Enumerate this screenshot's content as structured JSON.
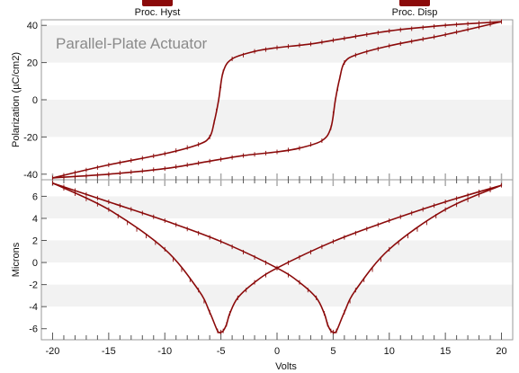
{
  "toolbar": {
    "buttons": [
      {
        "label": "Proc. Hyst"
      },
      {
        "label": "Proc. Disp"
      }
    ]
  },
  "colors": {
    "series": "#8b0a0a",
    "band": "#f2f2f2"
  },
  "chart_data": [
    {
      "type": "line",
      "title": "Parallel-Plate Actuator",
      "ylabel": "Polarization (µC/cm2)",
      "xlim": [
        -21,
        21
      ],
      "ylim": [
        -43,
        43
      ],
      "yticks": [
        -40,
        -20,
        0,
        20,
        40
      ],
      "yticklabels": [
        "-40",
        "-20",
        "0",
        "20",
        "40"
      ],
      "grid": false,
      "series": [
        {
          "branch": "descending",
          "x": [
            20,
            15,
            10,
            6,
            3,
            0,
            -2,
            -4,
            -4.8,
            -5.2,
            -5.6,
            -6,
            -7,
            -10,
            -15,
            -20
          ],
          "y": [
            42,
            40,
            37,
            33,
            30,
            28,
            26,
            22,
            15,
            0,
            -12,
            -20,
            -24,
            -29,
            -35,
            -42
          ]
        },
        {
          "branch": "ascending",
          "x": [
            -20,
            -15,
            -10,
            -6,
            -3,
            0,
            2,
            4,
            4.8,
            5.2,
            5.6,
            6,
            7,
            10,
            15,
            20
          ],
          "y": [
            -42,
            -40,
            -37,
            -33,
            -30,
            -28,
            -26,
            -22,
            -15,
            0,
            12,
            20,
            24,
            29,
            35,
            42
          ]
        }
      ]
    },
    {
      "type": "line",
      "ylabel": "Microns",
      "xlabel": "Volts",
      "xlim": [
        -21,
        21
      ],
      "ylim": [
        -7,
        7.5
      ],
      "xticks": [
        -20,
        -15,
        -10,
        -5,
        0,
        5,
        10,
        15,
        20
      ],
      "xticklabels": [
        "-20",
        "-15",
        "-10",
        "-5",
        "0",
        "5",
        "10",
        "15",
        "20"
      ],
      "yticks": [
        -6,
        -4,
        -2,
        0,
        2,
        4,
        6
      ],
      "yticklabels": [
        "-6",
        "-4",
        "-2",
        "0",
        "2",
        "4",
        "6"
      ],
      "grid": false,
      "series": [
        {
          "branch": "descending",
          "x": [
            20,
            15,
            10,
            5,
            0,
            -2,
            -3.5,
            -4.2,
            -4.5,
            -4.8,
            -5,
            -5.3,
            -6,
            -7,
            -10,
            -15,
            -20
          ],
          "y": [
            7,
            5.5,
            3.8,
            1.9,
            -0.5,
            -1.8,
            -3.2,
            -4.6,
            -5.6,
            -6.2,
            -6.3,
            -6.2,
            -4.5,
            -2.5,
            1.2,
            4.8,
            7.2
          ]
        },
        {
          "branch": "ascending",
          "x": [
            -20,
            -15,
            -10,
            -5,
            0,
            2,
            3.5,
            4.2,
            4.5,
            4.8,
            5,
            5.3,
            6,
            7,
            10,
            15,
            20
          ],
          "y": [
            7.2,
            5.5,
            3.8,
            1.9,
            -0.5,
            -1.8,
            -3.2,
            -4.6,
            -5.6,
            -6.2,
            -6.3,
            -6.2,
            -4.5,
            -2.5,
            1.2,
            4.8,
            7
          ]
        }
      ]
    }
  ]
}
